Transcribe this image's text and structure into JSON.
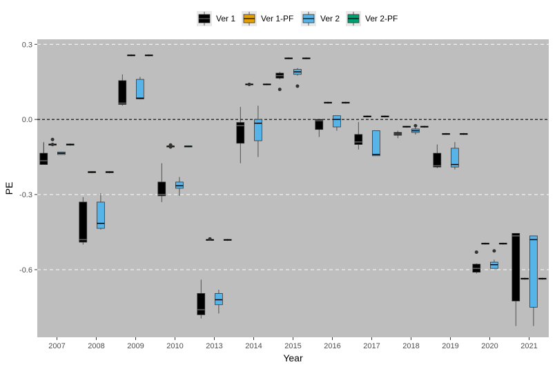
{
  "chart_data": {
    "type": "boxplot",
    "title": "",
    "xlabel": "Year",
    "ylabel": "PE",
    "categories": [
      "2007",
      "2008",
      "2009",
      "2010",
      "2013",
      "2014",
      "2015",
      "2016",
      "2017",
      "2018",
      "2019",
      "2020",
      "2021"
    ],
    "y_ticks": [
      {
        "value": 0.3,
        "label": "0.3"
      },
      {
        "value": 0.0,
        "label": "0.0"
      },
      {
        "value": -0.3,
        "label": "-0.3"
      },
      {
        "value": -0.6,
        "label": "-0.6"
      }
    ],
    "ylim": [
      -0.87,
      0.32
    ],
    "reference_line": {
      "value": 0.0,
      "style": "dashed"
    },
    "grid": "horizontal-major-dashed",
    "background": "#bebebe",
    "legend_position": "top",
    "series": [
      {
        "name": "Ver 1",
        "color": "#000000",
        "median_color": "#666666"
      },
      {
        "name": "Ver 1-PF",
        "color": "#E69F00",
        "median_color": "#000000"
      },
      {
        "name": "Ver 2",
        "color": "#56B4E9",
        "median_color": "#000000"
      },
      {
        "name": "Ver 2-PF",
        "color": "#009E73",
        "median_color": "#000000"
      }
    ],
    "boxes": [
      {
        "category": "2007",
        "series": 0,
        "min": -0.095,
        "q1": -0.18,
        "median": -0.165,
        "q3": -0.135,
        "max": -0.09,
        "whisker_low": -0.18,
        "outliers": []
      },
      {
        "category": "2007",
        "series": 1,
        "min": -0.105,
        "q1": -0.103,
        "median": -0.1,
        "q3": -0.098,
        "max": -0.096,
        "outliers": [
          -0.08,
          -0.1
        ]
      },
      {
        "category": "2007",
        "series": 2,
        "min": -0.14,
        "q1": -0.14,
        "median": -0.135,
        "q3": -0.13,
        "max": -0.13,
        "outliers": []
      },
      {
        "category": "2007",
        "series": 3,
        "min": -0.105,
        "q1": -0.103,
        "median": -0.1,
        "q3": -0.098,
        "max": -0.096,
        "outliers": []
      },
      {
        "category": "2008",
        "series": 0,
        "min": -0.5,
        "q1": -0.49,
        "median": -0.48,
        "q3": -0.33,
        "max": -0.31,
        "outliers": []
      },
      {
        "category": "2008",
        "series": 1,
        "min": -0.215,
        "q1": -0.213,
        "median": -0.21,
        "q3": -0.208,
        "max": -0.206,
        "outliers": []
      },
      {
        "category": "2008",
        "series": 2,
        "min": -0.44,
        "q1": -0.435,
        "median": -0.415,
        "q3": -0.33,
        "max": -0.295,
        "outliers": []
      },
      {
        "category": "2008",
        "series": 3,
        "min": -0.215,
        "q1": -0.213,
        "median": -0.21,
        "q3": -0.208,
        "max": -0.206,
        "outliers": []
      },
      {
        "category": "2009",
        "series": 0,
        "min": 0.055,
        "q1": 0.06,
        "median": 0.065,
        "q3": 0.155,
        "max": 0.18,
        "outliers": []
      },
      {
        "category": "2009",
        "series": 1,
        "min": 0.252,
        "q1": 0.254,
        "median": 0.256,
        "q3": 0.258,
        "max": 0.26,
        "outliers": []
      },
      {
        "category": "2009",
        "series": 2,
        "min": 0.08,
        "q1": 0.082,
        "median": 0.085,
        "q3": 0.16,
        "max": 0.17,
        "outliers": []
      },
      {
        "category": "2009",
        "series": 3,
        "min": 0.252,
        "q1": 0.254,
        "median": 0.256,
        "q3": 0.258,
        "max": 0.26,
        "outliers": []
      },
      {
        "category": "2010",
        "series": 0,
        "min": -0.33,
        "q1": -0.305,
        "median": -0.3,
        "q3": -0.25,
        "max": -0.175,
        "outliers": []
      },
      {
        "category": "2010",
        "series": 1,
        "min": -0.11,
        "q1": -0.108,
        "median": -0.107,
        "q3": -0.106,
        "max": -0.105,
        "outliers": [
          -0.102,
          -0.11
        ]
      },
      {
        "category": "2010",
        "series": 2,
        "min": -0.305,
        "q1": -0.275,
        "median": -0.265,
        "q3": -0.25,
        "max": -0.23,
        "outliers": []
      },
      {
        "category": "2010",
        "series": 3,
        "min": -0.11,
        "q1": -0.108,
        "median": -0.107,
        "q3": -0.106,
        "max": -0.105,
        "outliers": []
      },
      {
        "category": "2013",
        "series": 0,
        "min": -0.795,
        "q1": -0.78,
        "median": -0.76,
        "q3": -0.695,
        "max": -0.64,
        "outliers": []
      },
      {
        "category": "2013",
        "series": 1,
        "min": -0.485,
        "q1": -0.483,
        "median": -0.481,
        "q3": -0.479,
        "max": -0.477,
        "outliers": [
          -0.477
        ]
      },
      {
        "category": "2013",
        "series": 2,
        "min": -0.775,
        "q1": -0.74,
        "median": -0.72,
        "q3": -0.695,
        "max": -0.68,
        "outliers": []
      },
      {
        "category": "2013",
        "series": 3,
        "min": -0.485,
        "q1": -0.483,
        "median": -0.481,
        "q3": -0.479,
        "max": -0.477,
        "outliers": []
      },
      {
        "category": "2014",
        "series": 0,
        "min": -0.175,
        "q1": -0.095,
        "median": -0.025,
        "q3": -0.012,
        "max": 0.05,
        "outliers": []
      },
      {
        "category": "2014",
        "series": 1,
        "min": 0.136,
        "q1": 0.138,
        "median": 0.14,
        "q3": 0.142,
        "max": 0.144,
        "outliers": [
          0.14
        ]
      },
      {
        "category": "2014",
        "series": 2,
        "min": -0.15,
        "q1": -0.085,
        "median": -0.015,
        "q3": 0.0,
        "max": 0.055,
        "outliers": []
      },
      {
        "category": "2014",
        "series": 3,
        "min": 0.136,
        "q1": 0.138,
        "median": 0.14,
        "q3": 0.142,
        "max": 0.144,
        "outliers": []
      },
      {
        "category": "2015",
        "series": 0,
        "min": 0.16,
        "q1": 0.165,
        "median": 0.175,
        "q3": 0.185,
        "max": 0.19,
        "outliers": [
          0.12
        ]
      },
      {
        "category": "2015",
        "series": 1,
        "min": 0.24,
        "q1": 0.242,
        "median": 0.244,
        "q3": 0.246,
        "max": 0.248,
        "outliers": []
      },
      {
        "category": "2015",
        "series": 2,
        "min": 0.175,
        "q1": 0.18,
        "median": 0.19,
        "q3": 0.2,
        "max": 0.205,
        "outliers": [
          0.133
        ]
      },
      {
        "category": "2015",
        "series": 3,
        "min": 0.24,
        "q1": 0.242,
        "median": 0.244,
        "q3": 0.246,
        "max": 0.248,
        "outliers": []
      },
      {
        "category": "2016",
        "series": 0,
        "min": -0.07,
        "q1": -0.04,
        "median": -0.005,
        "q3": 0.0,
        "max": 0.0,
        "outliers": []
      },
      {
        "category": "2016",
        "series": 1,
        "min": 0.063,
        "q1": 0.065,
        "median": 0.067,
        "q3": 0.069,
        "max": 0.071,
        "outliers": []
      },
      {
        "category": "2016",
        "series": 2,
        "min": -0.045,
        "q1": -0.03,
        "median": 0.0,
        "q3": 0.015,
        "max": 0.015,
        "outliers": []
      },
      {
        "category": "2016",
        "series": 3,
        "min": 0.063,
        "q1": 0.065,
        "median": 0.067,
        "q3": 0.069,
        "max": 0.071,
        "outliers": []
      },
      {
        "category": "2017",
        "series": 0,
        "min": -0.12,
        "q1": -0.1,
        "median": -0.09,
        "q3": -0.06,
        "max": -0.01,
        "outliers": []
      },
      {
        "category": "2017",
        "series": 1,
        "min": 0.008,
        "q1": 0.01,
        "median": 0.012,
        "q3": 0.014,
        "max": 0.016,
        "outliers": []
      },
      {
        "category": "2017",
        "series": 2,
        "min": -0.145,
        "q1": -0.145,
        "median": -0.14,
        "q3": -0.045,
        "max": -0.045,
        "outliers": []
      },
      {
        "category": "2017",
        "series": 3,
        "min": 0.008,
        "q1": 0.01,
        "median": 0.012,
        "q3": 0.014,
        "max": 0.016,
        "outliers": []
      },
      {
        "category": "2018",
        "series": 0,
        "min": -0.075,
        "q1": -0.063,
        "median": -0.058,
        "q3": -0.052,
        "max": -0.045,
        "outliers": []
      },
      {
        "category": "2018",
        "series": 1,
        "min": -0.033,
        "q1": -0.031,
        "median": -0.029,
        "q3": -0.027,
        "max": -0.025,
        "outliers": []
      },
      {
        "category": "2018",
        "series": 2,
        "min": -0.06,
        "q1": -0.052,
        "median": -0.045,
        "q3": -0.038,
        "max": -0.03,
        "outliers": [
          -0.025
        ]
      },
      {
        "category": "2018",
        "series": 3,
        "min": -0.033,
        "q1": -0.031,
        "median": -0.029,
        "q3": -0.027,
        "max": -0.025,
        "outliers": []
      },
      {
        "category": "2019",
        "series": 0,
        "min": -0.195,
        "q1": -0.19,
        "median": -0.185,
        "q3": -0.135,
        "max": -0.1,
        "outliers": []
      },
      {
        "category": "2019",
        "series": 1,
        "min": -0.062,
        "q1": -0.06,
        "median": -0.058,
        "q3": -0.056,
        "max": -0.054,
        "outliers": []
      },
      {
        "category": "2019",
        "series": 2,
        "min": -0.2,
        "q1": -0.19,
        "median": -0.18,
        "q3": -0.115,
        "max": -0.09,
        "outliers": []
      },
      {
        "category": "2019",
        "series": 3,
        "min": -0.062,
        "q1": -0.06,
        "median": -0.058,
        "q3": -0.056,
        "max": -0.054,
        "outliers": []
      },
      {
        "category": "2020",
        "series": 0,
        "min": -0.615,
        "q1": -0.61,
        "median": -0.595,
        "q3": -0.578,
        "max": -0.575,
        "outliers": [
          -0.53
        ]
      },
      {
        "category": "2020",
        "series": 1,
        "min": -0.5,
        "q1": -0.498,
        "median": -0.496,
        "q3": -0.494,
        "max": -0.492,
        "outliers": []
      },
      {
        "category": "2020",
        "series": 2,
        "min": -0.595,
        "q1": -0.595,
        "median": -0.58,
        "q3": -0.57,
        "max": -0.56,
        "outliers": [
          -0.525
        ]
      },
      {
        "category": "2020",
        "series": 3,
        "min": -0.5,
        "q1": -0.498,
        "median": -0.496,
        "q3": -0.494,
        "max": -0.492,
        "outliers": []
      },
      {
        "category": "2021",
        "series": 0,
        "min": -0.825,
        "q1": -0.725,
        "median": -0.465,
        "q3": -0.455,
        "max": -0.455,
        "outliers": []
      },
      {
        "category": "2021",
        "series": 1,
        "min": -0.64,
        "q1": -0.638,
        "median": -0.636,
        "q3": -0.634,
        "max": -0.632,
        "outliers": []
      },
      {
        "category": "2021",
        "series": 2,
        "min": -0.825,
        "q1": -0.75,
        "median": -0.48,
        "q3": -0.465,
        "max": -0.465,
        "outliers": []
      },
      {
        "category": "2021",
        "series": 3,
        "min": -0.64,
        "q1": -0.638,
        "median": -0.636,
        "q3": -0.634,
        "max": -0.632,
        "outliers": []
      }
    ]
  }
}
